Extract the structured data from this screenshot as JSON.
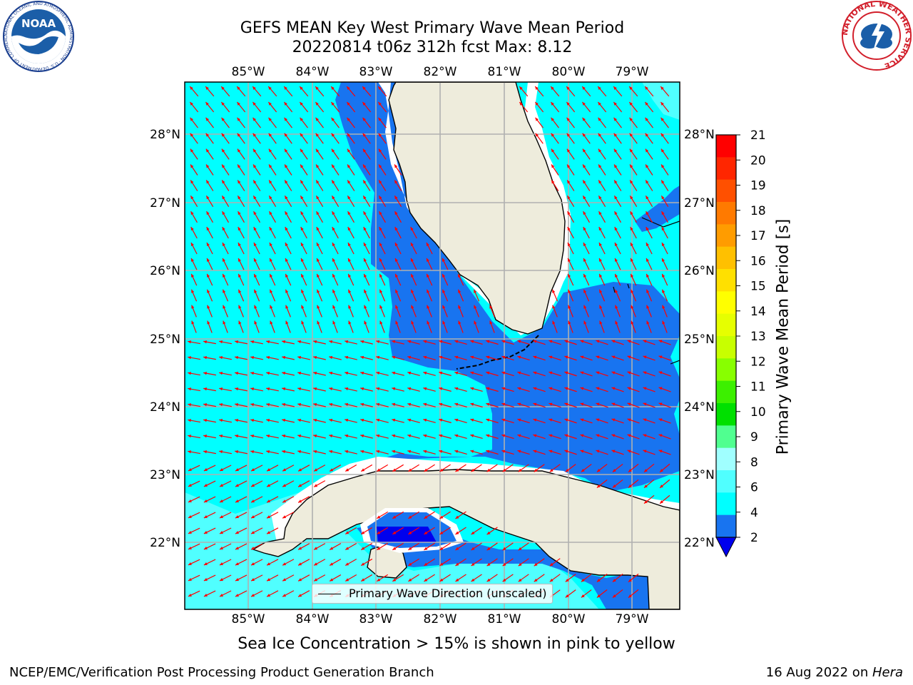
{
  "title": {
    "line1": "GEFS MEAN Key West Primary Wave Mean Period",
    "line2": "20220814 t06z 312h fcst   Max: 8.12"
  },
  "map": {
    "lon_labels": [
      "85°W",
      "84°W",
      "83°W",
      "82°W",
      "81°W",
      "80°W",
      "79°W"
    ],
    "lat_labels": [
      "28°N",
      "27°N",
      "26°N",
      "25°N",
      "24°N",
      "23°N",
      "22°N"
    ],
    "legend_label": "Primary Wave Direction (unscaled)",
    "colors": {
      "band_2_4": "#1874f0",
      "band_4_6": "#00ffff",
      "band_6_8": "#50ffff",
      "band_under_2": "#0000ee",
      "land": "#eeecdc",
      "arrow": "#ff0000"
    }
  },
  "colorbar": {
    "label": "Primary Wave Mean Period [s]",
    "ticks": [
      "21",
      "20",
      "19",
      "18",
      "17",
      "16",
      "15",
      "14",
      "13",
      "12",
      "11",
      "10",
      "9",
      "8",
      "6",
      "4",
      "2"
    ],
    "colors": [
      "#ff0000",
      "#ff2600",
      "#ff5000",
      "#ff7a00",
      "#ff9c00",
      "#ffc000",
      "#ffe000",
      "#ffff00",
      "#e6ff00",
      "#c8ff00",
      "#88ff00",
      "#3cf000",
      "#00e000",
      "#50ff90",
      "#a0ffff",
      "#50ffff",
      "#00ffff",
      "#1874f0",
      "#0000ee"
    ]
  },
  "caption": "Sea Ice Concentration > 15% is shown in pink to yellow",
  "footer": {
    "left": "NCEP/EMC/Verification Post Processing Product Generation Branch",
    "right_date": "16 Aug 2022 on ",
    "right_machine": "Hera"
  },
  "logos": {
    "left": "NOAA",
    "left_ring": "NATIONAL OCEANIC AND ATMOSPHERIC ADMINISTRATION · U.S. DEPARTMENT OF COMMERCE",
    "right_ring": "NATIONAL WEATHER SERVICE"
  }
}
